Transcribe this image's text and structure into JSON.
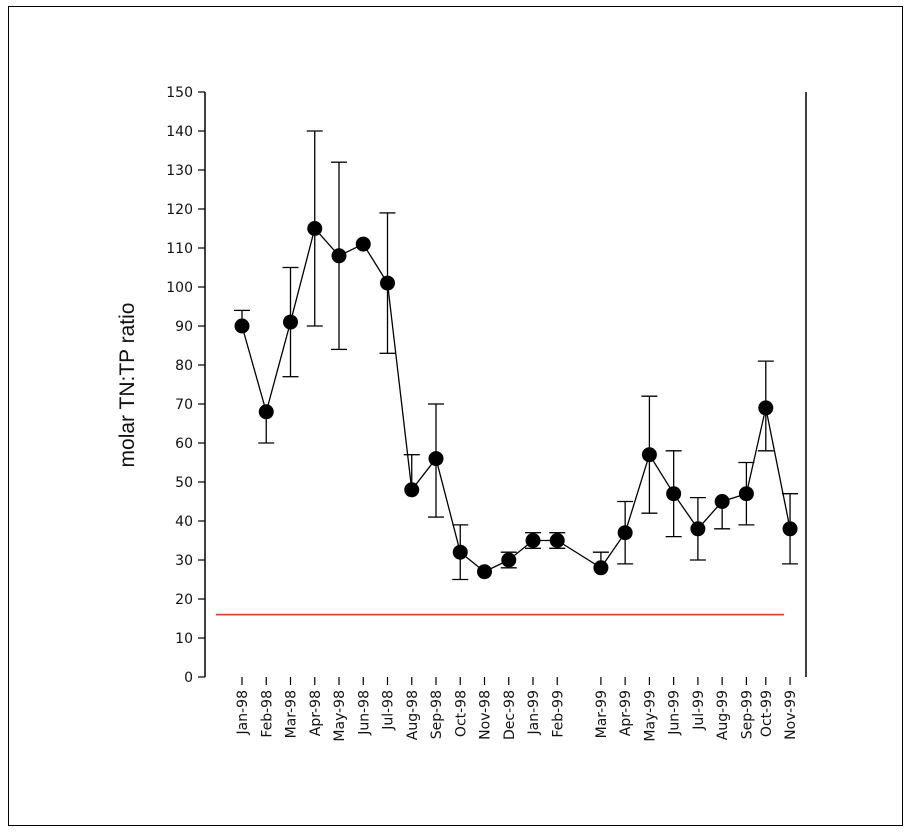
{
  "chart_data": {
    "type": "line",
    "ylabel": "molar TN:TP ratio",
    "ylim": [
      0,
      150
    ],
    "yticks": [
      0,
      10,
      20,
      30,
      40,
      50,
      60,
      70,
      80,
      90,
      100,
      110,
      120,
      130,
      140,
      150
    ],
    "categories": [
      "Jan-98",
      "Feb-98",
      "Mar-98",
      "Apr-98",
      "May-98",
      "Jun-98",
      "Jul-98",
      "Aug-98",
      "Sep-98",
      "Oct-98",
      "Nov-98",
      "Dec-98",
      "Jan-99",
      "Feb-99",
      "Mar-99",
      "Apr-99",
      "May-99",
      "Jun-99",
      "Jul-99",
      "Aug-99",
      "Sep-99",
      "Oct-99",
      "Nov-99"
    ],
    "x": [
      0,
      1,
      2,
      3,
      4,
      5,
      6,
      7,
      8,
      9,
      10,
      11,
      12,
      13,
      14.8,
      15.8,
      16.8,
      17.8,
      18.8,
      19.8,
      20.8,
      21.6,
      22.6
    ],
    "values": [
      90,
      68,
      91,
      115,
      108,
      111,
      101,
      48,
      56,
      32,
      27,
      30,
      35,
      35,
      28,
      37,
      57,
      47,
      38,
      45,
      47,
      69,
      38
    ],
    "err_upper": [
      4,
      0,
      14,
      25,
      24,
      0,
      18,
      9,
      14,
      7,
      0,
      2,
      2,
      2,
      4,
      8,
      15,
      11,
      8,
      0,
      8,
      12,
      9
    ],
    "err_lower": [
      0,
      8,
      14,
      25,
      24,
      0,
      18,
      0,
      15,
      7,
      0,
      2,
      2,
      2,
      0,
      8,
      15,
      11,
      8,
      7,
      8,
      11,
      9
    ],
    "reference_line": {
      "y": 16,
      "color": "#e8402a"
    },
    "colors": {
      "series": "#000000",
      "reference": "#e8402a"
    },
    "grid": false
  }
}
